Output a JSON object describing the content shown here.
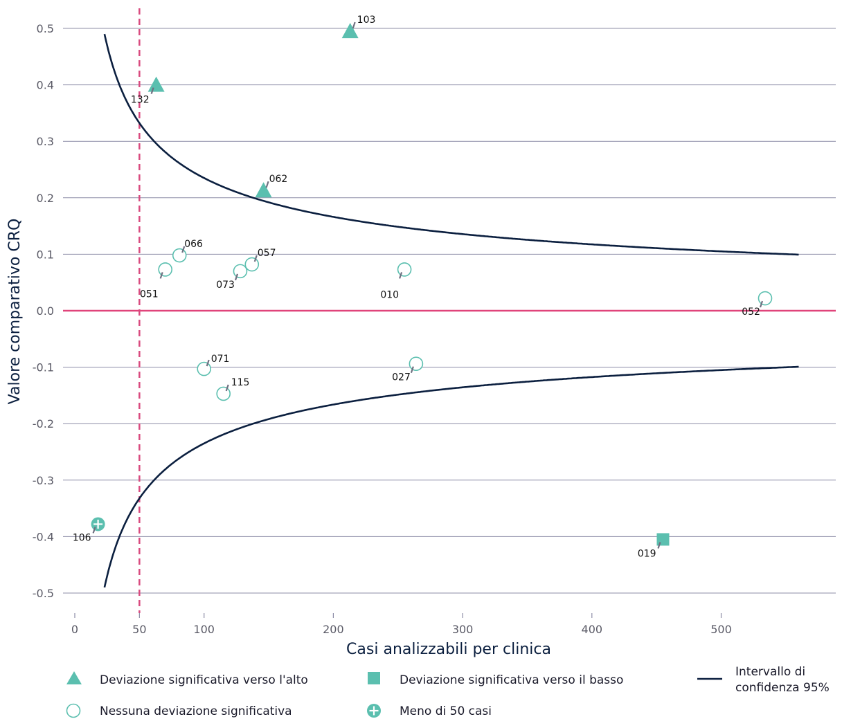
{
  "chart_data": {
    "type": "scatter",
    "xlabel": "Casi analizzabili per clinica",
    "ylabel": "Valore comparativo CRQ",
    "xlim": [
      -5,
      590
    ],
    "ylim": [
      -0.5,
      0.5
    ],
    "x_ticks": [
      0,
      50,
      100,
      200,
      300,
      400,
      500
    ],
    "x_tick_labels": [
      "0",
      "50",
      "100",
      "200",
      "300",
      "400",
      "500"
    ],
    "y_ticks": [
      0.5,
      0.4,
      0.3,
      0.2,
      0.1,
      0.0,
      -0.1,
      -0.2,
      -0.3,
      -0.4,
      -0.5
    ],
    "y_tick_labels": [
      "0.5",
      "0.4",
      "0.3",
      "0.2",
      "0.1",
      "0.0",
      "-0.1",
      "-0.2",
      "-0.3",
      "-0.4",
      "-0.5"
    ],
    "grid": true,
    "reference_line_y": 0.0,
    "threshold_line_x": 50,
    "confidence_interval": {
      "name": "Intervallo di confidenza 95%",
      "x_start": 23,
      "x_end": 560,
      "constant": 2.35
    },
    "points": [
      {
        "id": "103",
        "x": 213,
        "y": 0.495,
        "category": "up"
      },
      {
        "id": "132",
        "x": 63,
        "y": 0.4,
        "category": "up"
      },
      {
        "id": "062",
        "x": 146,
        "y": 0.213,
        "category": "up"
      },
      {
        "id": "066",
        "x": 81,
        "y": 0.098,
        "category": "none"
      },
      {
        "id": "057",
        "x": 137,
        "y": 0.082,
        "category": "none"
      },
      {
        "id": "051",
        "x": 70,
        "y": 0.073,
        "category": "none"
      },
      {
        "id": "073",
        "x": 128,
        "y": 0.07,
        "category": "none"
      },
      {
        "id": "010",
        "x": 255,
        "y": 0.073,
        "category": "none"
      },
      {
        "id": "052",
        "x": 534,
        "y": 0.022,
        "category": "none"
      },
      {
        "id": "071",
        "x": 100,
        "y": -0.103,
        "category": "none"
      },
      {
        "id": "027",
        "x": 264,
        "y": -0.094,
        "category": "none"
      },
      {
        "id": "115",
        "x": 115,
        "y": -0.147,
        "category": "none"
      },
      {
        "id": "106",
        "x": 18,
        "y": -0.378,
        "category": "few"
      },
      {
        "id": "019",
        "x": 455,
        "y": -0.405,
        "category": "down"
      }
    ],
    "legend": {
      "placement": "bottom",
      "items": [
        {
          "key": "up",
          "label": "Deviazione significativa verso l'alto"
        },
        {
          "key": "down",
          "label": "Deviazione significativa verso il basso"
        },
        {
          "key": "ci",
          "label_lines": [
            "Intervallo di",
            "confidenza 95%"
          ]
        },
        {
          "key": "none",
          "label": "Nessuna deviazione significativa"
        },
        {
          "key": "few",
          "label": "Meno di 50 casi"
        }
      ]
    },
    "colors": {
      "marker": "#5bbfaf",
      "ci_line": "#0b1f3f",
      "zero_line": "#e0447a",
      "threshold_line": "#d94a7f",
      "grid": "#8c8ca6",
      "leader": "#6f6f80"
    }
  }
}
